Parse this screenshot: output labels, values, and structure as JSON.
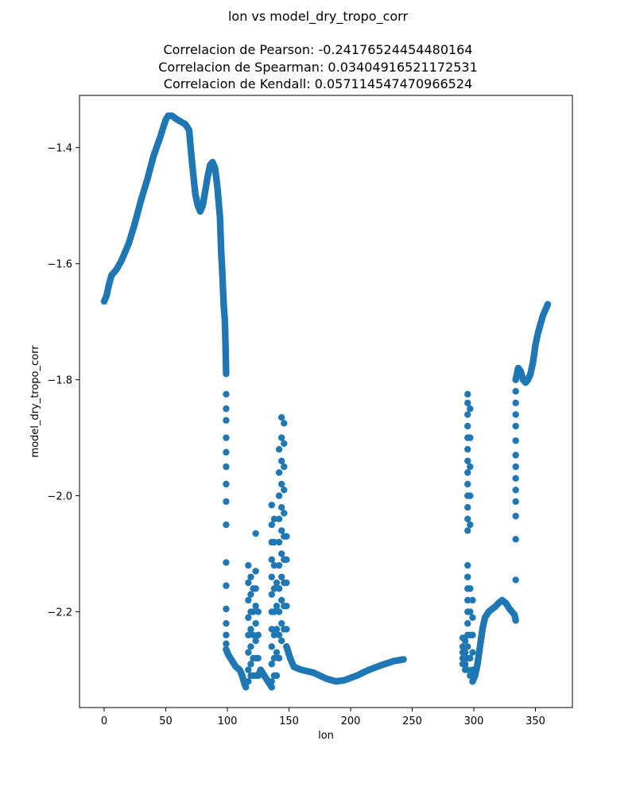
{
  "chart_data": {
    "type": "scatter",
    "title": "lon vs model_dry_tropo_corr",
    "subtitle_lines": [
      "Correlacion de Pearson: -0.24176524454480164",
      "Correlacion de Spearman: 0.03404916521172531",
      "Correlacion de Kendall: 0.057114547470966524"
    ],
    "xlabel": "lon",
    "ylabel": "model_dry_tropo_corr",
    "xlim": [
      -20,
      380
    ],
    "ylim": [
      -2.365,
      -1.31
    ],
    "xticks": [
      0,
      50,
      100,
      150,
      200,
      250,
      300,
      350
    ],
    "yticks": [
      -2.2,
      -2.0,
      -1.8,
      -1.6,
      -1.4
    ],
    "xtick_labels": [
      "0",
      "50",
      "100",
      "150",
      "200",
      "250",
      "300",
      "350"
    ],
    "ytick_labels": [
      "−2.2",
      "−2.0",
      "−1.8",
      "−1.6",
      "−1.4"
    ],
    "grid": false,
    "marker_color": "#1f77b4",
    "segments": [
      {
        "type": "curve",
        "points": [
          [
            0,
            -1.665
          ],
          [
            2,
            -1.655
          ],
          [
            4,
            -1.635
          ],
          [
            6,
            -1.62
          ],
          [
            10,
            -1.61
          ],
          [
            14,
            -1.595
          ],
          [
            20,
            -1.565
          ],
          [
            25,
            -1.53
          ],
          [
            30,
            -1.49
          ],
          [
            35,
            -1.455
          ],
          [
            40,
            -1.415
          ],
          [
            45,
            -1.385
          ],
          [
            48,
            -1.365
          ],
          [
            50,
            -1.352
          ],
          [
            52,
            -1.345
          ],
          [
            55,
            -1.345
          ],
          [
            58,
            -1.35
          ],
          [
            62,
            -1.355
          ],
          [
            66,
            -1.36
          ],
          [
            69,
            -1.37
          ],
          [
            70,
            -1.395
          ],
          [
            72,
            -1.44
          ],
          [
            74,
            -1.48
          ],
          [
            76,
            -1.5
          ],
          [
            78,
            -1.51
          ],
          [
            80,
            -1.5
          ],
          [
            82,
            -1.475
          ],
          [
            84,
            -1.45
          ],
          [
            86,
            -1.43
          ],
          [
            88,
            -1.425
          ],
          [
            90,
            -1.435
          ],
          [
            92,
            -1.47
          ],
          [
            94,
            -1.52
          ],
          [
            95,
            -1.58
          ],
          [
            96,
            -1.62
          ],
          [
            97,
            -1.67
          ],
          [
            98,
            -1.7
          ],
          [
            98.5,
            -1.74
          ],
          [
            99,
            -1.79
          ]
        ]
      },
      {
        "type": "vertical",
        "x": 99,
        "values": [
          -1.825,
          -1.85,
          -1.87,
          -1.9,
          -1.925,
          -1.95,
          -1.98,
          -2.01,
          -2.05,
          -2.115,
          -2.155,
          -2.195,
          -2.22,
          -2.24,
          -2.255,
          -2.265
        ]
      },
      {
        "type": "curve",
        "points": [
          [
            99,
            -2.265
          ],
          [
            101,
            -2.275
          ],
          [
            104,
            -2.285
          ],
          [
            107,
            -2.295
          ],
          [
            110,
            -2.3
          ],
          [
            112,
            -2.31
          ],
          [
            114,
            -2.325
          ],
          [
            115,
            -2.33
          ]
        ]
      },
      {
        "type": "vertical",
        "x": 117,
        "values": [
          -2.12,
          -2.15,
          -2.18,
          -2.21,
          -2.24,
          -2.27,
          -2.3,
          -2.32
        ]
      },
      {
        "type": "vertical",
        "x": 119,
        "values": [
          -2.14,
          -2.17,
          -2.2,
          -2.23,
          -2.26,
          -2.29,
          -2.31
        ]
      },
      {
        "type": "vertical",
        "x": 121,
        "values": [
          -2.16,
          -2.2,
          -2.24,
          -2.28,
          -2.31
        ]
      },
      {
        "type": "vertical",
        "x": 123,
        "values": [
          -2.065,
          -2.13,
          -2.16,
          -2.19,
          -2.22,
          -2.25,
          -2.28,
          -2.31
        ]
      },
      {
        "type": "vertical",
        "x": 125,
        "values": [
          -2.2,
          -2.24,
          -2.28,
          -2.31
        ]
      },
      {
        "type": "curve",
        "points": [
          [
            125,
            -2.31
          ],
          [
            127,
            -2.3
          ],
          [
            130,
            -2.31
          ],
          [
            133,
            -2.32
          ],
          [
            136,
            -2.33
          ]
        ]
      },
      {
        "type": "vertical",
        "x": 136,
        "values": [
          -2.016,
          -2.05,
          -2.08,
          -2.11,
          -2.14,
          -2.17,
          -2.2,
          -2.23,
          -2.26,
          -2.29,
          -2.32
        ]
      },
      {
        "type": "vertical",
        "x": 138,
        "values": [
          -2.04,
          -2.08,
          -2.12,
          -2.16,
          -2.2,
          -2.24,
          -2.28,
          -2.31
        ]
      },
      {
        "type": "vertical",
        "x": 140,
        "values": [
          -2.15,
          -2.19,
          -2.23,
          -2.27,
          -2.31
        ]
      },
      {
        "type": "vertical",
        "x": 142,
        "values": [
          -1.92,
          -1.96,
          -2.0,
          -2.04,
          -2.08,
          -2.12,
          -2.16,
          -2.2,
          -2.24,
          -2.28
        ]
      },
      {
        "type": "vertical",
        "x": 144,
        "values": [
          -1.865,
          -1.9,
          -1.94,
          -1.98,
          -2.02,
          -2.06,
          -2.1,
          -2.14,
          -2.18,
          -2.22,
          -2.25
        ]
      },
      {
        "type": "vertical",
        "x": 146,
        "values": [
          -1.875,
          -1.91,
          -1.95,
          -1.99,
          -2.03,
          -2.07,
          -2.11,
          -2.15,
          -2.19,
          -2.23
        ]
      },
      {
        "type": "vertical",
        "x": 148,
        "values": [
          -2.07,
          -2.11,
          -2.15,
          -2.19,
          -2.23,
          -2.26
        ]
      },
      {
        "type": "curve",
        "points": [
          [
            148,
            -2.26
          ],
          [
            151,
            -2.28
          ],
          [
            154,
            -2.295
          ],
          [
            160,
            -2.3
          ],
          [
            170,
            -2.305
          ],
          [
            180,
            -2.315
          ],
          [
            188,
            -2.32
          ],
          [
            195,
            -2.318
          ],
          [
            205,
            -2.31
          ],
          [
            215,
            -2.3
          ],
          [
            225,
            -2.292
          ],
          [
            235,
            -2.285
          ],
          [
            243,
            -2.282
          ]
        ]
      },
      {
        "type": "vertical",
        "x": 291,
        "values": [
          -2.245,
          -2.26,
          -2.27,
          -2.28,
          -2.29
        ]
      },
      {
        "type": "vertical",
        "x": 293,
        "values": [
          -2.25,
          -2.27,
          -2.29,
          -2.3
        ]
      },
      {
        "type": "vertical",
        "x": 295,
        "values": [
          -1.825,
          -1.84,
          -1.86,
          -1.88,
          -1.9,
          -1.92,
          -1.94,
          -1.96,
          -1.98,
          -2.0,
          -2.02,
          -2.04,
          -2.06,
          -2.12,
          -2.14,
          -2.16,
          -2.18,
          -2.2,
          -2.22,
          -2.24,
          -2.26,
          -2.28,
          -2.3
        ]
      },
      {
        "type": "vertical",
        "x": 297,
        "values": [
          -1.85,
          -1.9,
          -1.95,
          -2.0,
          -2.05,
          -2.16,
          -2.2,
          -2.24,
          -2.28,
          -2.31
        ]
      },
      {
        "type": "vertical",
        "x": 299,
        "values": [
          -2.18,
          -2.21,
          -2.24,
          -2.27,
          -2.3,
          -2.32
        ]
      },
      {
        "type": "curve",
        "points": [
          [
            299,
            -2.32
          ],
          [
            301,
            -2.31
          ],
          [
            303,
            -2.29
          ],
          [
            305,
            -2.26
          ],
          [
            307,
            -2.23
          ],
          [
            309,
            -2.21
          ],
          [
            312,
            -2.2
          ],
          [
            315,
            -2.195
          ],
          [
            318,
            -2.19
          ],
          [
            320,
            -2.185
          ],
          [
            323,
            -2.18
          ],
          [
            326,
            -2.185
          ],
          [
            329,
            -2.195
          ],
          [
            331,
            -2.2
          ],
          [
            333,
            -2.205
          ],
          [
            334,
            -2.215
          ]
        ]
      },
      {
        "type": "vertical",
        "x": 334,
        "values": [
          -2.145,
          -2.075,
          -2.035,
          -2.01,
          -1.99,
          -1.97,
          -1.95,
          -1.93,
          -1.905,
          -1.88,
          -1.86,
          -1.84,
          -1.82,
          -1.8
        ]
      },
      {
        "type": "curve",
        "points": [
          [
            334,
            -1.8
          ],
          [
            336,
            -1.78
          ],
          [
            338,
            -1.785
          ],
          [
            340,
            -1.8
          ],
          [
            342,
            -1.805
          ],
          [
            344,
            -1.8
          ],
          [
            346,
            -1.79
          ],
          [
            348,
            -1.77
          ],
          [
            350,
            -1.74
          ],
          [
            352,
            -1.72
          ],
          [
            354,
            -1.705
          ],
          [
            356,
            -1.69
          ],
          [
            358,
            -1.68
          ],
          [
            360,
            -1.67
          ]
        ]
      }
    ]
  }
}
